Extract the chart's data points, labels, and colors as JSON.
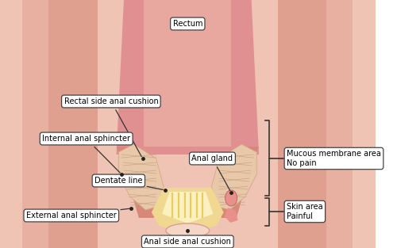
{
  "bg_color": "#ffffff",
  "labels": {
    "rectum": "Rectum",
    "rectal_cushion": "Rectal side anal cushion",
    "internal_sphincter": "Internal anal sphincter",
    "dentate_line": "Dentate line",
    "external_sphincter": "External anal sphincter",
    "anal_gland": "Anal gland",
    "anal_cushion": "Anal side anal cushion",
    "mucous": "Mucous membrane area\nNo pain",
    "skin_area": "Skin area\nPainful"
  },
  "colors": {
    "outer_pale": "#f5ddd5",
    "outer_mid": "#f0c4b4",
    "outer_dark": "#e8b0a0",
    "inner_col": "#e0a090",
    "center_bg": "#f0c4b4",
    "rectum_fill": "#e09090",
    "rectum_inner": "#e8a8a0",
    "wall_fill": "#d88878",
    "cushion_fill": "#e8c8a8",
    "cushion_ec": "#d4a888",
    "cushion_texture": "#c8a888",
    "yellow_zone": "#f0d890",
    "yellow_light": "#faf0c0",
    "yellow_lines": "#e8c850",
    "anal_gland_fill": "#e8908a",
    "anal_gland_ec": "#c07070",
    "anal_opening_fill": "#f5d5c5",
    "anal_opening_ec": "#d4a090",
    "label_bg": "#ffffff",
    "label_ec": "#444444",
    "bracket_color": "#333333",
    "dot_color": "#222222",
    "arrow_color": "#333333"
  }
}
